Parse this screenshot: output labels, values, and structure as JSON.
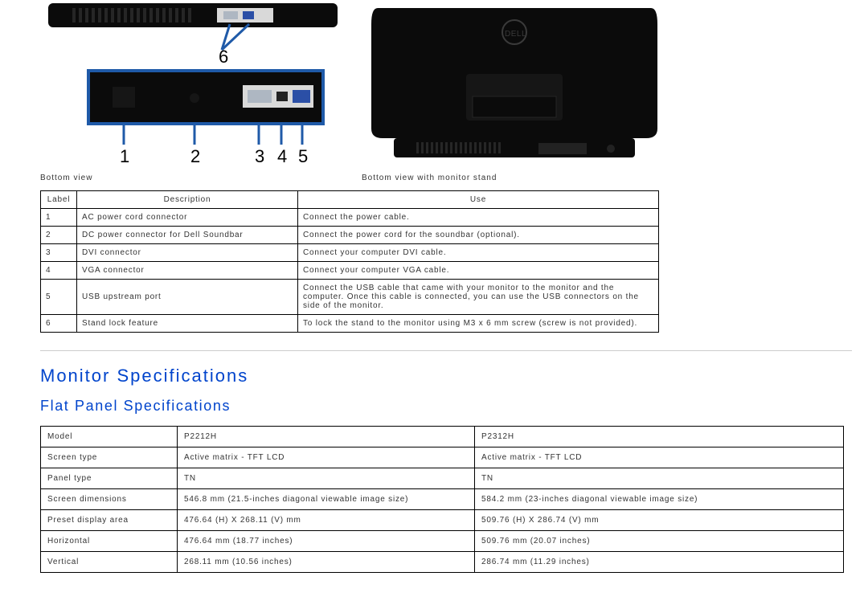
{
  "diagram": {
    "caption_left": "Bottom view",
    "caption_right": "Bottom view with monitor stand",
    "colors": {
      "device_black": "#0b0b0b",
      "callout_blue": "#1f5aa8",
      "callout_bg": "#ffffff",
      "num_font": "22"
    },
    "top_strip": {
      "callout_num": "6",
      "port_labels": []
    },
    "bottom_strip": {
      "callout_nums": [
        "1",
        "2",
        "3",
        "4",
        "5"
      ]
    }
  },
  "ports_table": {
    "headers": [
      "Label",
      "Description",
      "Use"
    ],
    "rows": [
      [
        "1",
        "AC power cord connector",
        "Connect the power cable."
      ],
      [
        "2",
        "DC power connector for Dell Soundbar",
        "Connect the power cord for the soundbar (optional)."
      ],
      [
        "3",
        "DVI connector",
        "Connect your computer DVI cable."
      ],
      [
        "4",
        "VGA connector",
        "Connect your computer VGA cable."
      ],
      [
        "5",
        "USB upstream port",
        "Connect the USB cable that came with your monitor to the monitor and the computer. Once this cable is connected, you can use the USB connectors on the side of the monitor."
      ],
      [
        "6",
        "Stand lock feature",
        "To lock the stand to the monitor using M3 x 6 mm screw (screw is not provided)."
      ]
    ]
  },
  "headings": {
    "monitor_specs": "Monitor Specifications",
    "flat_panel": "Flat Panel Specifications"
  },
  "specs_table": {
    "rows": [
      [
        "Model",
        "P2212H",
        "P2312H"
      ],
      [
        "Screen type",
        "Active matrix - TFT LCD",
        "Active matrix - TFT LCD"
      ],
      [
        "Panel type",
        "TN",
        "TN"
      ],
      [
        "Screen dimensions",
        "546.8 mm (21.5-inches diagonal viewable image size)",
        "584.2 mm (23-inches diagonal viewable image size)"
      ],
      [
        "Preset display area",
        "476.64 (H) X 268.11 (V) mm",
        "509.76 (H) X 286.74 (V) mm"
      ],
      [
        "Horizontal",
        "476.64 mm (18.77 inches)",
        "509.76 mm (20.07 inches)"
      ],
      [
        "Vertical",
        "268.11 mm (10.56 inches)",
        "286.74 mm (11.29 inches)"
      ]
    ]
  }
}
